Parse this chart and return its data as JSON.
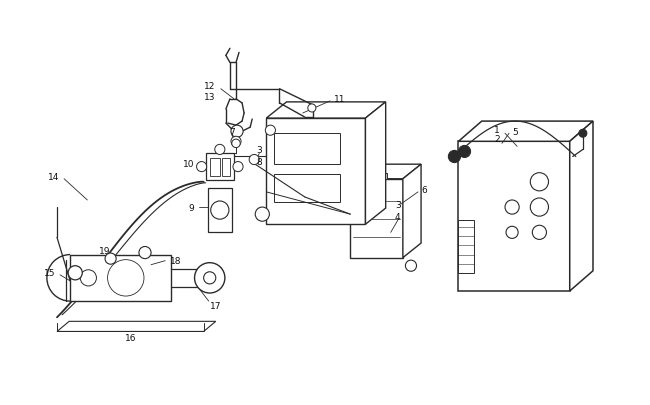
{
  "background_color": "#ffffff",
  "line_color": "#2a2a2a",
  "label_color": "#111111",
  "figsize": [
    6.5,
    4.06
  ],
  "dpi": 100,
  "xlim": [
    0.2,
    6.6
  ],
  "ylim": [
    0.7,
    4.1
  ]
}
